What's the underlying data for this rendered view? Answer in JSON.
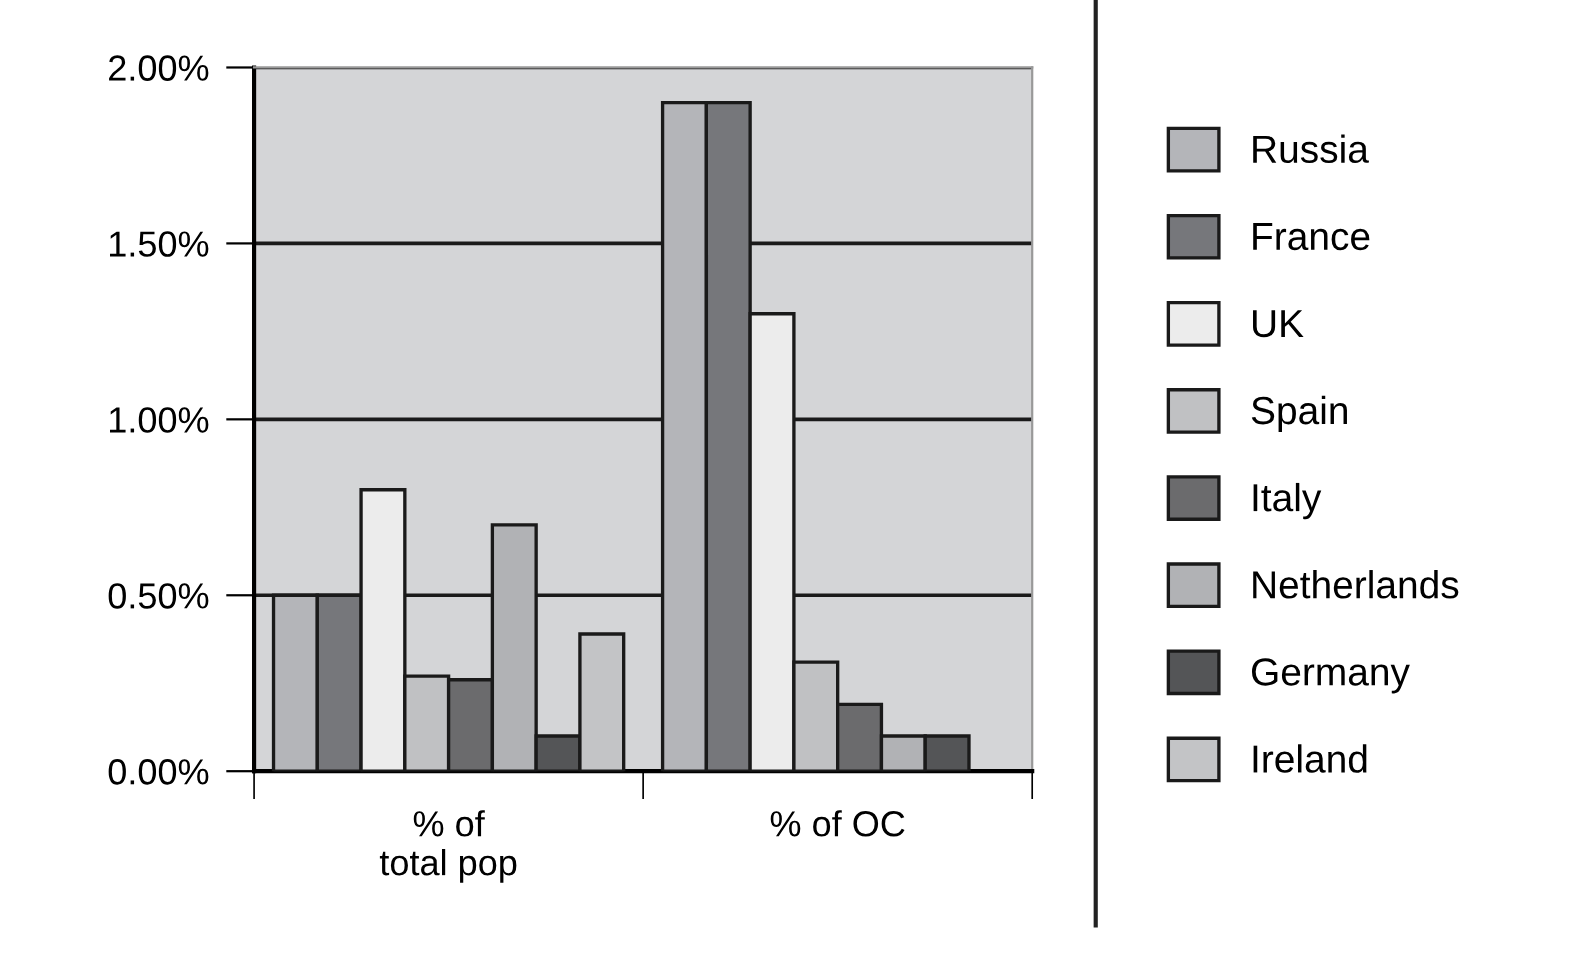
{
  "chart_data": {
    "type": "bar",
    "categories": [
      "% of\ntotal pop",
      "% of OC"
    ],
    "series": [
      {
        "name": "Russia",
        "color": "#b4b5b9",
        "values": [
          0.5,
          1.9
        ]
      },
      {
        "name": "France",
        "color": "#76777b",
        "values": [
          0.5,
          1.9
        ]
      },
      {
        "name": "UK",
        "color": "#ececec",
        "values": [
          0.8,
          1.3
        ]
      },
      {
        "name": "Spain",
        "color": "#c0c1c3",
        "values": [
          0.27,
          0.31
        ]
      },
      {
        "name": "Italy",
        "color": "#6b6b6d",
        "values": [
          0.26,
          0.19
        ]
      },
      {
        "name": "Netherlands",
        "color": "#b1b2b5",
        "values": [
          0.7,
          0.1
        ]
      },
      {
        "name": "Germany",
        "color": "#545557",
        "values": [
          0.1,
          0.1
        ]
      },
      {
        "name": "Ireland",
        "color": "#c3c4c6",
        "values": [
          0.39,
          null
        ]
      }
    ],
    "ylim": [
      0,
      2
    ],
    "yticks": [
      {
        "value": 0,
        "label": "0.00%"
      },
      {
        "value": 0.5,
        "label": "0.50%"
      },
      {
        "value": 1,
        "label": "1.00%"
      },
      {
        "value": 1.5,
        "label": "1.50%"
      },
      {
        "value": 2,
        "label": "2.00%"
      }
    ],
    "grid": "y",
    "legend": "right"
  }
}
